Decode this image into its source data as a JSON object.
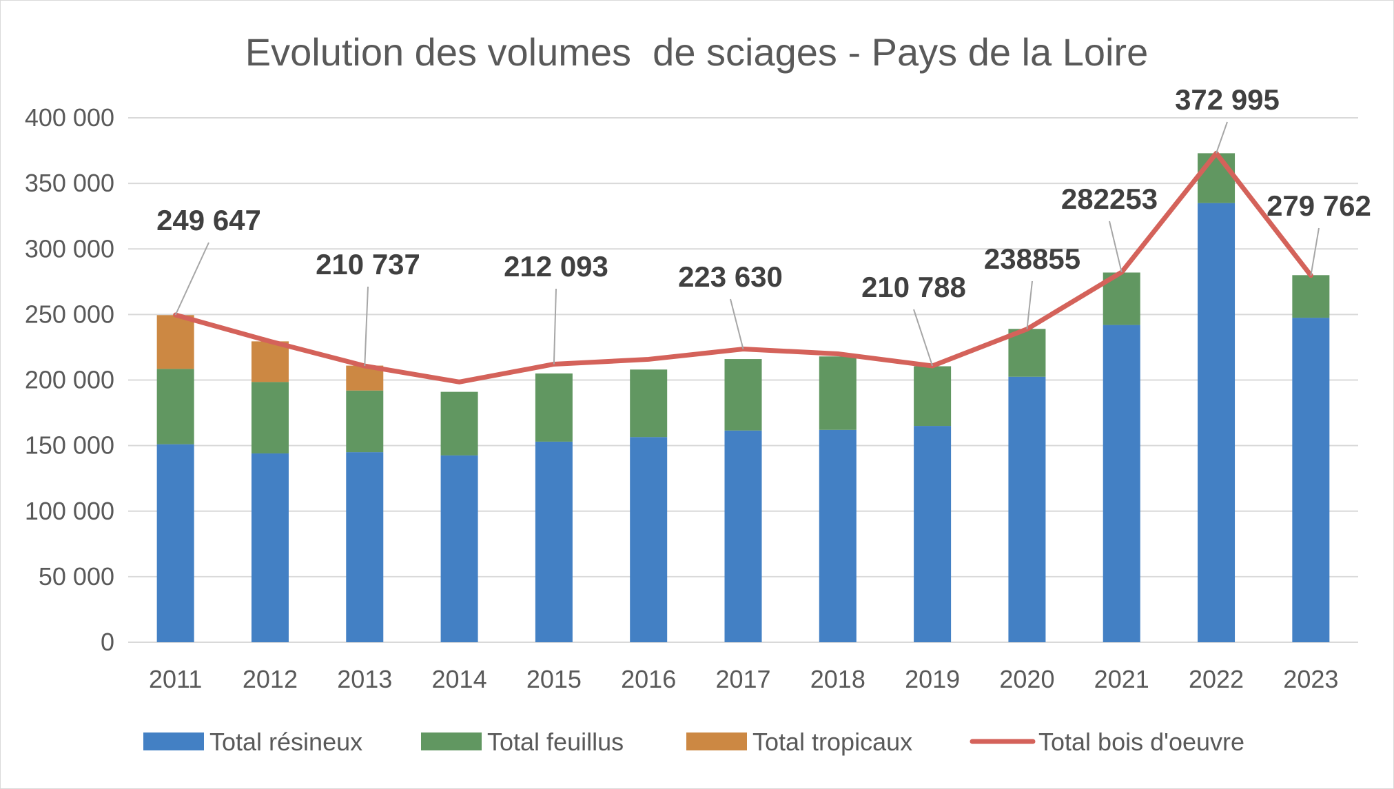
{
  "chart_data": {
    "type": "bar",
    "stacked": true,
    "title": "Evolution des volumes  de sciages - Pays de la Loire",
    "categories": [
      "2011",
      "2012",
      "2013",
      "2014",
      "2015",
      "2016",
      "2017",
      "2018",
      "2019",
      "2020",
      "2021",
      "2022",
      "2023"
    ],
    "ylim": [
      0,
      400000
    ],
    "yticks": [
      0,
      50000,
      100000,
      150000,
      200000,
      250000,
      300000,
      350000,
      400000
    ],
    "ytick_labels": [
      "0",
      "50 000",
      "100 000",
      "150 000",
      "200 000",
      "250 000",
      "300 000",
      "350 000",
      "400 000"
    ],
    "grid": true,
    "legend_position": "bottom",
    "series": [
      {
        "name": "Total résineux",
        "kind": "bar",
        "color": "#4380c4",
        "values": [
          151000,
          144000,
          145000,
          142500,
          153000,
          156500,
          161500,
          162000,
          165000,
          202500,
          242000,
          335000,
          247500
        ]
      },
      {
        "name": "Total feuillus",
        "kind": "bar",
        "color": "#619761",
        "values": [
          57500,
          54500,
          47000,
          48500,
          52000,
          51500,
          54500,
          56000,
          45500,
          36500,
          40000,
          38000,
          32500
        ]
      },
      {
        "name": "Total tropicaux",
        "kind": "bar",
        "color": "#cc8843",
        "values": [
          41000,
          31000,
          19000,
          0,
          0,
          0,
          0,
          0,
          0,
          0,
          0,
          0,
          0
        ]
      },
      {
        "name": "Total bois d'oeuvre",
        "kind": "line",
        "color": "#d4625a",
        "values": [
          249647,
          229500,
          210737,
          198500,
          212093,
          215800,
          223630,
          220000,
          210788,
          238855,
          282253,
          372995,
          279762
        ]
      }
    ],
    "data_labels": [
      {
        "category": "2011",
        "text": "249 647"
      },
      {
        "category": "2013",
        "text": "210 737"
      },
      {
        "category": "2015",
        "text": "212 093"
      },
      {
        "category": "2017",
        "text": "223 630"
      },
      {
        "category": "2019",
        "text": "210 788"
      },
      {
        "category": "2020",
        "text": "238855"
      },
      {
        "category": "2021",
        "text": "282253"
      },
      {
        "category": "2022",
        "text": "372 995"
      },
      {
        "category": "2023",
        "text": "279 762"
      }
    ]
  }
}
